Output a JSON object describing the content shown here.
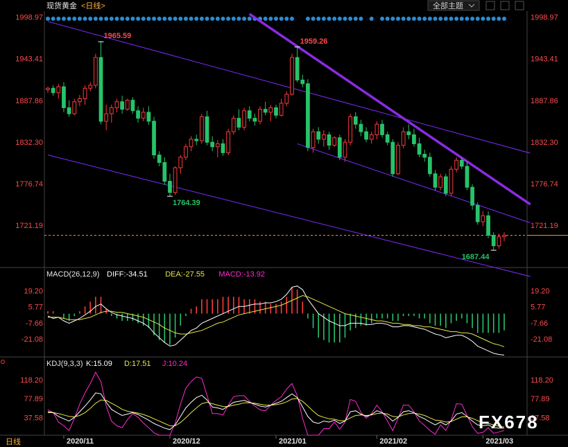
{
  "header": {
    "instrument": "现货黄金",
    "period": "<日线>",
    "theme_button": "全部主题",
    "theme_dropdown_icon": "chevron-down-icon"
  },
  "colors": {
    "up": "#ff3b3b",
    "down": "#27c36a",
    "axis_price": "#ff4a4a",
    "channel": "#7b2cff",
    "trend": "#8a2be2",
    "dot": "#2b8cd6",
    "diff": "#ffffff",
    "dea": "#e8e84a",
    "j": "#ff2bd0",
    "last_price_line": "#ff8c2b"
  },
  "chart_data": [
    {
      "type": "candlestick",
      "title": "现货黄金",
      "yticks": [
        "1998.97",
        "1943.41",
        "1887.86",
        "1832.30",
        "1776.74",
        "1721.19"
      ],
      "ylim": [
        1665,
        2005
      ],
      "xticks": [
        "2020/11",
        "2020/12",
        "2021/01",
        "2021/02",
        "2021/03"
      ],
      "annotations": [
        {
          "text": "1965.59",
          "color": "#ff4a4a"
        },
        {
          "text": "1959.26",
          "color": "#ff4a4a"
        },
        {
          "text": "1764.39",
          "color": "#27c36a"
        },
        {
          "text": "1687.44",
          "color": "#27c36a"
        }
      ],
      "candles": [
        [
          1902,
          1906,
          1898,
          1904
        ],
        [
          1904,
          1908,
          1894,
          1898
        ],
        [
          1898,
          1910,
          1890,
          1906
        ],
        [
          1906,
          1912,
          1872,
          1878
        ],
        [
          1878,
          1888,
          1866,
          1870
        ],
        [
          1870,
          1890,
          1868,
          1886
        ],
        [
          1886,
          1895,
          1880,
          1890
        ],
        [
          1890,
          1908,
          1882,
          1904
        ],
        [
          1904,
          1912,
          1900,
          1908
        ],
        [
          1908,
          1950,
          1904,
          1945
        ],
        [
          1945,
          1966,
          1856,
          1860
        ],
        [
          1860,
          1882,
          1848,
          1870
        ],
        [
          1870,
          1882,
          1858,
          1878
        ],
        [
          1878,
          1890,
          1872,
          1886
        ],
        [
          1886,
          1894,
          1870,
          1876
        ],
        [
          1876,
          1890,
          1874,
          1888
        ],
        [
          1888,
          1892,
          1870,
          1874
        ],
        [
          1874,
          1880,
          1858,
          1864
        ],
        [
          1864,
          1878,
          1860,
          1872
        ],
        [
          1872,
          1880,
          1855,
          1860
        ],
        [
          1860,
          1866,
          1810,
          1815
        ],
        [
          1815,
          1820,
          1800,
          1805
        ],
        [
          1805,
          1812,
          1775,
          1780
        ],
        [
          1780,
          1790,
          1760,
          1765
        ],
        [
          1765,
          1800,
          1762,
          1798
        ],
        [
          1798,
          1815,
          1790,
          1812
        ],
        [
          1812,
          1830,
          1808,
          1826
        ],
        [
          1826,
          1840,
          1820,
          1836
        ],
        [
          1836,
          1842,
          1828,
          1834
        ],
        [
          1834,
          1870,
          1830,
          1866
        ],
        [
          1866,
          1874,
          1828,
          1832
        ],
        [
          1832,
          1840,
          1820,
          1826
        ],
        [
          1826,
          1835,
          1812,
          1830
        ],
        [
          1830,
          1836,
          1814,
          1818
        ],
        [
          1818,
          1850,
          1815,
          1846
        ],
        [
          1846,
          1868,
          1842,
          1864
        ],
        [
          1864,
          1876,
          1848,
          1852
        ],
        [
          1852,
          1878,
          1848,
          1874
        ],
        [
          1874,
          1880,
          1860,
          1864
        ],
        [
          1864,
          1870,
          1854,
          1860
        ],
        [
          1860,
          1880,
          1856,
          1876
        ],
        [
          1876,
          1886,
          1868,
          1872
        ],
        [
          1872,
          1882,
          1860,
          1878
        ],
        [
          1878,
          1882,
          1864,
          1868
        ],
        [
          1868,
          1890,
          1866,
          1884
        ],
        [
          1884,
          1900,
          1880,
          1896
        ],
        [
          1896,
          1950,
          1894,
          1945
        ],
        [
          1945,
          1959,
          1912,
          1915
        ],
        [
          1915,
          1922,
          1905,
          1910
        ],
        [
          1910,
          1916,
          1820,
          1825
        ],
        [
          1825,
          1850,
          1818,
          1846
        ],
        [
          1846,
          1852,
          1830,
          1836
        ],
        [
          1836,
          1848,
          1826,
          1842
        ],
        [
          1842,
          1846,
          1822,
          1828
        ],
        [
          1828,
          1840,
          1826,
          1838
        ],
        [
          1838,
          1842,
          1808,
          1812
        ],
        [
          1812,
          1836,
          1806,
          1832
        ],
        [
          1832,
          1870,
          1828,
          1866
        ],
        [
          1866,
          1872,
          1850,
          1856
        ],
        [
          1856,
          1862,
          1840,
          1846
        ],
        [
          1846,
          1852,
          1832,
          1836
        ],
        [
          1836,
          1846,
          1830,
          1842
        ],
        [
          1842,
          1860,
          1836,
          1856
        ],
        [
          1856,
          1862,
          1838,
          1842
        ],
        [
          1842,
          1846,
          1828,
          1832
        ],
        [
          1832,
          1836,
          1786,
          1790
        ],
        [
          1790,
          1832,
          1788,
          1828
        ],
        [
          1828,
          1852,
          1824,
          1846
        ],
        [
          1846,
          1856,
          1836,
          1842
        ],
        [
          1842,
          1850,
          1826,
          1830
        ],
        [
          1830,
          1838,
          1812,
          1816
        ],
        [
          1816,
          1822,
          1806,
          1812
        ],
        [
          1812,
          1818,
          1786,
          1790
        ],
        [
          1790,
          1795,
          1768,
          1772
        ],
        [
          1772,
          1790,
          1768,
          1786
        ],
        [
          1786,
          1790,
          1760,
          1764
        ],
        [
          1764,
          1800,
          1760,
          1796
        ],
        [
          1796,
          1812,
          1792,
          1808
        ],
        [
          1808,
          1812,
          1796,
          1800
        ],
        [
          1800,
          1806,
          1768,
          1772
        ],
        [
          1772,
          1776,
          1742,
          1748
        ],
        [
          1748,
          1752,
          1722,
          1726
        ],
        [
          1726,
          1740,
          1720,
          1734
        ],
        [
          1734,
          1740,
          1704,
          1708
        ],
        [
          1708,
          1712,
          1688,
          1694
        ],
        [
          1694,
          1710,
          1690,
          1706
        ],
        [
          1706,
          1712,
          1700,
          1708
        ]
      ]
    },
    {
      "type": "bar+line",
      "title": "MACD(26,12,9)",
      "legend": [
        {
          "label": "DIFF:",
          "value": "-34.51",
          "color": "#ffffff"
        },
        {
          "label": "DEA:",
          "value": "-27.55",
          "color": "#e8e84a"
        },
        {
          "label": "MACD:",
          "value": "-13.92",
          "color": "#ff2bd0"
        }
      ],
      "yticks": [
        "19.20",
        "5.77",
        "-7.66",
        "-21.08"
      ],
      "ylim": [
        -36,
        28
      ],
      "diff": [
        -2,
        -4,
        -3,
        -6,
        -8,
        -6,
        -4,
        -1,
        2,
        6,
        8,
        4,
        1,
        -1,
        -2,
        -3,
        -4,
        -6,
        -8,
        -11,
        -16,
        -20,
        -24,
        -27,
        -26,
        -22,
        -18,
        -14,
        -12,
        -8,
        -6,
        -4,
        -2,
        0,
        2,
        4,
        6,
        6,
        7,
        8,
        8,
        9,
        9,
        10,
        12,
        16,
        22,
        23,
        20,
        12,
        6,
        0,
        -3,
        -6,
        -8,
        -10,
        -10,
        -8,
        -8,
        -8,
        -9,
        -9,
        -8,
        -8,
        -9,
        -11,
        -11,
        -10,
        -10,
        -11,
        -12,
        -13,
        -15,
        -17,
        -18,
        -20,
        -19,
        -18,
        -18,
        -20,
        -23,
        -27,
        -29,
        -31,
        -33,
        -34,
        -34.5
      ],
      "dea": [
        -3,
        -3,
        -3,
        -4,
        -5,
        -5,
        -5,
        -4,
        -3,
        -1,
        1,
        2,
        2,
        1,
        1,
        0,
        -1,
        -2,
        -3,
        -5,
        -7,
        -9,
        -12,
        -14,
        -16,
        -17,
        -17,
        -16,
        -15,
        -14,
        -12,
        -10,
        -8,
        -7,
        -5,
        -3,
        -1,
        0,
        1,
        2,
        3,
        4,
        5,
        6,
        7,
        9,
        11,
        13,
        15,
        14,
        12,
        10,
        8,
        6,
        4,
        2,
        0,
        -1,
        -2,
        -3,
        -4,
        -5,
        -6,
        -6,
        -7,
        -8,
        -8,
        -9,
        -9,
        -10,
        -10,
        -11,
        -11,
        -12,
        -13,
        -14,
        -15,
        -15,
        -16,
        -16,
        -17,
        -19,
        -21,
        -23,
        -25,
        -26,
        -27.55
      ],
      "macd": [
        2,
        2,
        0,
        -4,
        -6,
        -2,
        2,
        6,
        10,
        14,
        14,
        4,
        -2,
        -4,
        -6,
        -6,
        -6,
        -8,
        -10,
        -12,
        -18,
        -22,
        -24,
        -26,
        -20,
        -10,
        -2,
        4,
        6,
        12,
        12,
        12,
        12,
        14,
        14,
        14,
        14,
        12,
        12,
        12,
        10,
        10,
        8,
        8,
        10,
        14,
        22,
        20,
        10,
        -4,
        -12,
        -20,
        -22,
        -24,
        -24,
        -24,
        -20,
        -14,
        -12,
        -10,
        -10,
        -8,
        -4,
        -4,
        -4,
        -6,
        -6,
        -2,
        -2,
        -2,
        -4,
        -4,
        -8,
        -10,
        -10,
        -12,
        -8,
        -6,
        -4,
        -8,
        -12,
        -16,
        -16,
        -16,
        -16,
        -16,
        -13.92
      ]
    },
    {
      "type": "line",
      "title": "KDJ(9,3,3)",
      "legend": [
        {
          "label": "K:",
          "value": "15.09",
          "color": "#ffffff"
        },
        {
          "label": "D:",
          "value": "17.51",
          "color": "#e8e84a"
        },
        {
          "label": "J:",
          "value": "10.24",
          "color": "#ff2bd0"
        }
      ],
      "yticks": [
        "118.20",
        "77.89",
        "37.58"
      ],
      "ylim": [
        0,
        140
      ],
      "k": [
        50,
        48,
        40,
        35,
        30,
        38,
        50,
        62,
        75,
        90,
        88,
        70,
        55,
        48,
        42,
        45,
        48,
        44,
        38,
        32,
        25,
        20,
        15,
        12,
        22,
        40,
        58,
        70,
        80,
        85,
        75,
        60,
        58,
        55,
        62,
        70,
        72,
        74,
        70,
        66,
        62,
        60,
        64,
        68,
        72,
        80,
        88,
        80,
        60,
        40,
        28,
        25,
        30,
        28,
        32,
        25,
        30,
        50,
        52,
        45,
        40,
        44,
        52,
        48,
        40,
        30,
        38,
        50,
        52,
        48,
        40,
        35,
        28,
        22,
        28,
        22,
        30,
        45,
        48,
        40,
        30,
        22,
        20,
        22,
        16,
        15,
        15.09
      ],
      "d": [
        48,
        48,
        46,
        43,
        40,
        39,
        42,
        48,
        57,
        68,
        75,
        74,
        68,
        62,
        55,
        51,
        49,
        47,
        44,
        40,
        35,
        30,
        25,
        20,
        20,
        27,
        37,
        48,
        58,
        67,
        70,
        67,
        64,
        61,
        61,
        64,
        66,
        69,
        69,
        68,
        66,
        64,
        64,
        65,
        67,
        71,
        77,
        78,
        72,
        62,
        51,
        42,
        38,
        35,
        34,
        31,
        31,
        37,
        42,
        43,
        42,
        43,
        46,
        47,
        45,
        40,
        39,
        43,
        46,
        47,
        45,
        42,
        37,
        32,
        31,
        28,
        29,
        34,
        39,
        39,
        36,
        31,
        27,
        25,
        22,
        19,
        17.51
      ],
      "j": [
        54,
        48,
        28,
        20,
        10,
        36,
        66,
        90,
        110,
        134,
        114,
        62,
        30,
        20,
        16,
        33,
        46,
        38,
        26,
        16,
        5,
        0,
        -5,
        -4,
        26,
        66,
        100,
        114,
        124,
        121,
        85,
        46,
        46,
        43,
        64,
        82,
        84,
        84,
        72,
        62,
        54,
        52,
        64,
        74,
        82,
        98,
        110,
        84,
        36,
        0,
        -18,
        -9,
        14,
        14,
        28,
        13,
        28,
        76,
        72,
        49,
        36,
        46,
        64,
        50,
        30,
        10,
        36,
        64,
        64,
        50,
        30,
        21,
        10,
        2,
        22,
        10,
        32,
        67,
        66,
        42,
        18,
        4,
        6,
        16,
        4,
        7,
        10.24
      ]
    }
  ],
  "watermark": "FX678"
}
